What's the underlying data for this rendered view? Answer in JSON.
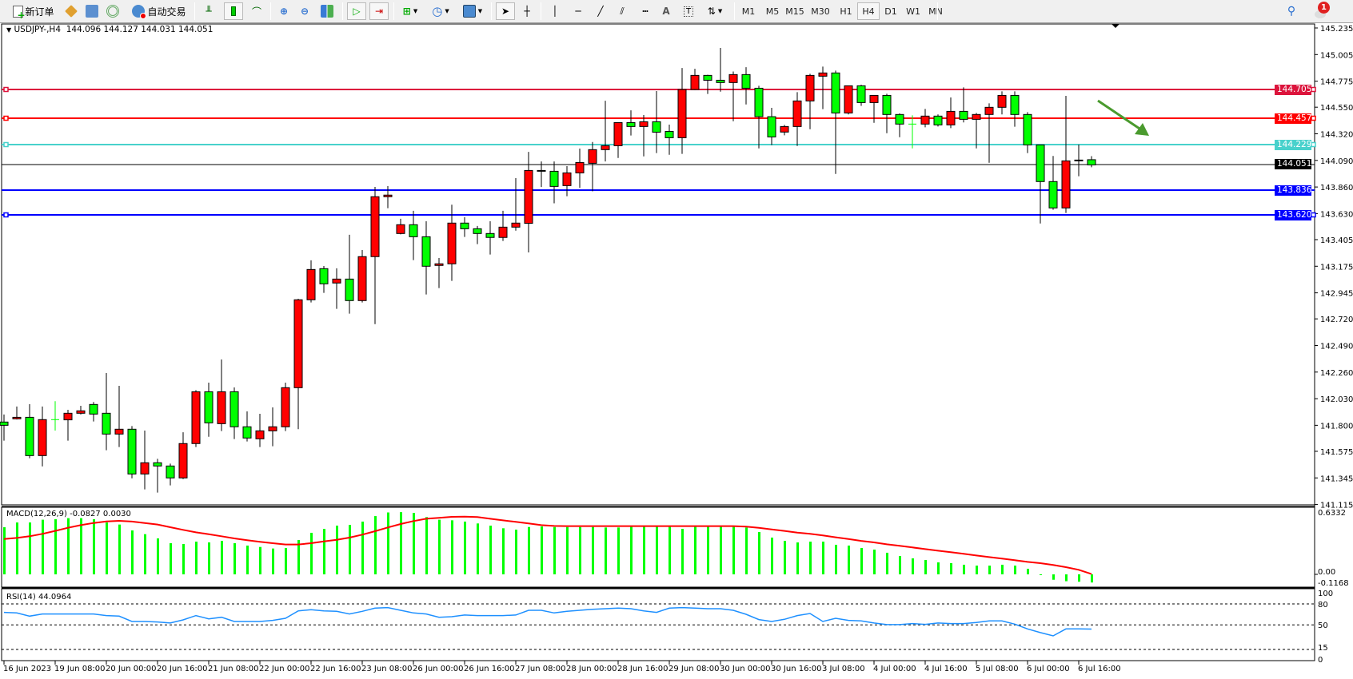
{
  "toolbar": {
    "new_order": "新订单",
    "auto_trading": "自动交易",
    "timeframes": [
      "M1",
      "M5",
      "M15",
      "M30",
      "H1",
      "H4",
      "D1",
      "W1",
      "MN"
    ],
    "active_timeframe": "H4",
    "notification_count": "1",
    "icons": [
      "new-order-icon",
      "history-center-icon",
      "market-watch-icon",
      "signals-icon",
      "auto-trading-icon",
      "bar-chart-icon",
      "candlestick-icon",
      "line-chart-icon",
      "zoom-in-icon",
      "zoom-out-icon",
      "tile-windows-icon",
      "auto-scroll-icon",
      "chart-shift-icon",
      "new-chart-icon",
      "periods-clock-icon",
      "templates-icon",
      "cursor-icon",
      "crosshair-icon",
      "vertical-line-icon",
      "horizontal-line-icon",
      "trendline-icon",
      "equidistant-channel-icon",
      "fibonacci-icon",
      "text-icon",
      "text-label-icon",
      "arrows-icon",
      "search-icon",
      "notification-icon"
    ]
  },
  "chart": {
    "symbol_label": "USDJPY-,H4",
    "ohlc_readout": "144.096 144.127 144.031 144.051",
    "colors": {
      "bull": "#ff0000",
      "bear": "#00ff00",
      "outline": "#000000",
      "macd_hist": "#00ff00",
      "macd_signal": "#ff0000",
      "rsi": "#1e90ff",
      "arrow": "#4a9a2e"
    }
  },
  "chart_data": [
    {
      "type": "candlestick",
      "title": "USDJPY-,H4",
      "ylim": [
        141.115,
        145.235
      ],
      "price_ticks": [
        "145.235",
        "145.005",
        "144.775",
        "144.550",
        "144.320",
        "144.090",
        "143.860",
        "143.630",
        "143.405",
        "143.175",
        "142.945",
        "142.720",
        "142.490",
        "142.260",
        "142.030",
        "141.800",
        "141.575",
        "141.345",
        "141.115"
      ],
      "time_labels": [
        "16 Jun 2023",
        "19 Jun 08:00",
        "20 Jun 00:00",
        "20 Jun 16:00",
        "21 Jun 08:00",
        "22 Jun 00:00",
        "22 Jun 16:00",
        "23 Jun 08:00",
        "26 Jun 00:00",
        "26 Jun 16:00",
        "27 Jun 08:00",
        "28 Jun 00:00",
        "28 Jun 16:00",
        "29 Jun 08:00",
        "30 Jun 00:00",
        "30 Jun 16:00",
        "3 Jul 08:00",
        "4 Jul 00:00",
        "4 Jul 16:00",
        "5 Jul 08:00",
        "6 Jul 00:00",
        "6 Jul 16:00"
      ],
      "candle_fields": [
        "open",
        "high",
        "low",
        "close"
      ],
      "candles": [
        [
          141.828,
          141.893,
          141.667,
          141.8
        ],
        [
          141.856,
          141.962,
          141.85,
          141.869
        ],
        [
          141.869,
          141.982,
          141.515,
          141.538
        ],
        [
          141.538,
          141.962,
          141.444,
          141.849
        ],
        [
          141.849,
          142.008,
          141.754,
          141.849
        ],
        [
          141.847,
          141.934,
          141.667,
          141.904
        ],
        [
          141.904,
          141.968,
          141.893,
          141.925
        ],
        [
          141.98,
          142.001,
          141.833,
          141.897
        ],
        [
          141.904,
          142.252,
          141.584,
          141.724
        ],
        [
          141.724,
          142.141,
          141.612,
          141.766
        ],
        [
          141.766,
          141.793,
          141.342,
          141.379
        ],
        [
          141.379,
          141.754,
          141.246,
          141.476
        ],
        [
          141.476,
          141.51,
          141.218,
          141.448
        ],
        [
          141.448,
          141.469,
          141.28,
          141.345
        ],
        [
          141.345,
          141.74,
          141.335,
          141.642
        ],
        [
          141.642,
          142.104,
          141.612,
          142.09
        ],
        [
          142.09,
          142.169,
          141.701,
          141.821
        ],
        [
          141.814,
          142.369,
          141.75,
          142.09
        ],
        [
          142.09,
          142.127,
          141.681,
          141.787
        ],
        [
          141.787,
          141.92,
          141.66,
          141.69
        ],
        [
          141.683,
          141.899,
          141.612,
          141.752
        ],
        [
          141.752,
          141.955,
          141.619,
          141.787
        ],
        [
          141.787,
          142.169,
          141.75,
          142.125
        ],
        [
          142.125,
          142.894,
          141.766,
          142.885
        ],
        [
          142.885,
          143.226,
          142.862,
          143.147
        ],
        [
          143.154,
          143.177,
          142.945,
          143.023
        ],
        [
          143.03,
          143.157,
          142.807,
          143.064
        ],
        [
          143.064,
          143.447,
          142.765,
          142.878
        ],
        [
          142.878,
          143.315,
          142.862,
          143.258
        ],
        [
          143.258,
          143.861,
          142.675,
          143.776
        ],
        [
          143.776,
          143.868,
          143.677,
          143.79
        ],
        [
          143.458,
          143.585,
          143.451,
          143.534
        ],
        [
          143.534,
          143.654,
          143.228,
          143.43
        ],
        [
          143.43,
          143.564,
          142.931,
          143.175
        ],
        [
          143.182,
          143.246,
          142.986,
          143.196
        ],
        [
          143.196,
          143.707,
          143.048,
          143.548
        ],
        [
          143.548,
          143.599,
          143.428,
          143.499
        ],
        [
          143.499,
          143.523,
          143.366,
          143.458
        ],
        [
          143.458,
          143.564,
          143.276,
          143.424
        ],
        [
          143.424,
          143.654,
          143.394,
          143.513
        ],
        [
          143.513,
          143.937,
          143.483,
          143.548
        ],
        [
          143.546,
          144.164,
          143.294,
          144.003
        ],
        [
          144.0,
          144.081,
          143.86,
          144.003
        ],
        [
          143.996,
          144.081,
          143.719,
          143.865
        ],
        [
          143.872,
          144.04,
          143.78,
          143.982
        ],
        [
          143.982,
          144.192,
          143.853,
          144.072
        ],
        [
          144.065,
          144.249,
          143.823,
          144.183
        ],
        [
          144.183,
          144.606,
          144.081,
          144.217
        ],
        [
          144.217,
          144.42,
          144.111,
          144.417
        ],
        [
          144.417,
          144.523,
          144.305,
          144.383
        ],
        [
          144.383,
          144.482,
          144.125,
          144.424
        ],
        [
          144.424,
          144.689,
          144.153,
          144.334
        ],
        [
          144.341,
          144.399,
          144.139,
          144.286
        ],
        [
          144.286,
          144.889,
          144.146,
          144.703
        ],
        [
          144.703,
          144.882,
          144.698,
          144.825
        ],
        [
          144.825,
          144.83,
          144.664,
          144.783
        ],
        [
          144.783,
          145.062,
          144.684,
          144.763
        ],
        [
          144.763,
          144.859,
          144.429,
          144.832
        ],
        [
          144.832,
          144.896,
          144.574,
          144.714
        ],
        [
          144.714,
          144.735,
          144.194,
          144.468
        ],
        [
          144.468,
          144.544,
          144.222,
          144.293
        ],
        [
          144.335,
          144.397,
          144.307,
          144.383
        ],
        [
          144.383,
          144.68,
          144.215,
          144.604
        ],
        [
          144.604,
          144.839,
          144.36,
          144.825
        ],
        [
          144.818,
          144.901,
          144.533,
          144.846
        ],
        [
          144.846,
          144.866,
          143.973,
          144.5
        ],
        [
          144.5,
          144.735,
          144.487,
          144.735
        ],
        [
          144.735,
          144.744,
          144.562,
          144.59
        ],
        [
          144.59,
          144.652,
          144.415,
          144.652
        ],
        [
          144.652,
          144.666,
          144.325,
          144.487
        ],
        [
          144.487,
          144.496,
          144.291,
          144.404
        ],
        [
          144.404,
          144.48,
          144.194,
          144.404
        ],
        [
          144.404,
          144.535,
          144.376,
          144.473
        ],
        [
          144.473,
          144.487,
          144.383,
          144.397
        ],
        [
          144.397,
          144.634,
          144.369,
          144.514
        ],
        [
          144.514,
          144.721,
          144.418,
          144.445
        ],
        [
          144.445,
          144.5,
          144.194,
          144.487
        ],
        [
          144.487,
          144.583,
          144.07,
          144.549
        ],
        [
          144.549,
          144.687,
          144.487,
          144.652
        ],
        [
          144.652,
          144.687,
          144.381,
          144.487
        ],
        [
          144.487,
          144.507,
          144.153,
          144.224
        ],
        [
          144.224,
          144.224,
          143.545,
          143.907
        ],
        [
          143.907,
          144.128,
          143.663,
          143.679
        ],
        [
          143.679,
          144.648,
          143.635,
          144.086
        ],
        [
          144.089,
          144.227,
          143.953,
          144.093
        ],
        [
          144.096,
          144.127,
          144.031,
          144.051
        ]
      ],
      "horizontal_lines": [
        {
          "price": "144.705",
          "color": "#dc143c"
        },
        {
          "price": "144.457",
          "color": "#ff0000"
        },
        {
          "price": "144.229",
          "color": "#48d1cc"
        },
        {
          "price": "143.836",
          "color": "#0000ff"
        },
        {
          "price": "143.620",
          "color": "#0000ff"
        }
      ],
      "bid_line": {
        "price": "144.051",
        "color": "#000000"
      },
      "annotation": {
        "type": "arrow",
        "direction": "down-right",
        "color": "#4a9a2e"
      }
    },
    {
      "type": "bar+line",
      "title": "MACD(12,26,9) -0.0827 0.0030",
      "label": "MACD(12,26,9)",
      "readout": "-0.0827 0.0030",
      "scale_labels": [
        "0.6332",
        "0.00",
        "-0.1168"
      ],
      "ylim": [
        -0.1168,
        0.6332
      ],
      "histogram": [
        0.48,
        0.528,
        0.528,
        0.556,
        0.561,
        0.572,
        0.572,
        0.561,
        0.528,
        0.507,
        0.447,
        0.409,
        0.366,
        0.317,
        0.309,
        0.333,
        0.325,
        0.341,
        0.317,
        0.293,
        0.279,
        0.263,
        0.268,
        0.35,
        0.423,
        0.463,
        0.496,
        0.504,
        0.537,
        0.593,
        0.63,
        0.633,
        0.626,
        0.583,
        0.556,
        0.55,
        0.537,
        0.518,
        0.496,
        0.469,
        0.455,
        0.482,
        0.488,
        0.482,
        0.482,
        0.482,
        0.482,
        0.477,
        0.477,
        0.496,
        0.496,
        0.485,
        0.485,
        0.463,
        0.485,
        0.485,
        0.485,
        0.485,
        0.477,
        0.431,
        0.374,
        0.341,
        0.325,
        0.333,
        0.333,
        0.301,
        0.293,
        0.268,
        0.252,
        0.22,
        0.187,
        0.163,
        0.146,
        0.122,
        0.114,
        0.098,
        0.089,
        0.089,
        0.098,
        0.089,
        0.057,
        -0.003,
        -0.055,
        -0.07,
        -0.075,
        -0.0827
      ],
      "signal": [
        0.36,
        0.371,
        0.388,
        0.412,
        0.442,
        0.474,
        0.501,
        0.523,
        0.539,
        0.545,
        0.537,
        0.523,
        0.507,
        0.48,
        0.453,
        0.428,
        0.409,
        0.388,
        0.366,
        0.347,
        0.331,
        0.317,
        0.304,
        0.304,
        0.317,
        0.336,
        0.352,
        0.374,
        0.404,
        0.439,
        0.477,
        0.512,
        0.542,
        0.566,
        0.575,
        0.585,
        0.588,
        0.583,
        0.566,
        0.55,
        0.534,
        0.518,
        0.501,
        0.493,
        0.491,
        0.491,
        0.491,
        0.491,
        0.491,
        0.491,
        0.491,
        0.491,
        0.491,
        0.491,
        0.491,
        0.491,
        0.491,
        0.491,
        0.485,
        0.474,
        0.458,
        0.442,
        0.425,
        0.412,
        0.396,
        0.377,
        0.36,
        0.341,
        0.325,
        0.306,
        0.29,
        0.274,
        0.257,
        0.241,
        0.225,
        0.209,
        0.192,
        0.176,
        0.16,
        0.144,
        0.127,
        0.114,
        0.095,
        0.073,
        0.046,
        0.003
      ]
    },
    {
      "type": "line",
      "title": "RSI(14) 44.0964",
      "label": "RSI(14)",
      "readout": "44.0964",
      "scale_labels": [
        "100",
        "80",
        "50",
        "15",
        "0"
      ],
      "levels": [
        80,
        50,
        15
      ],
      "ylim": [
        0,
        100
      ],
      "values": [
        67.9,
        67.1,
        62.5,
        65.6,
        65.6,
        65.6,
        65.6,
        65.6,
        63.3,
        62.5,
        54.9,
        54.9,
        54.2,
        52.7,
        57.2,
        63.3,
        58.7,
        61.0,
        54.9,
        54.9,
        54.9,
        56.5,
        59.5,
        70.1,
        71.7,
        70.1,
        69.4,
        65.6,
        69.4,
        73.9,
        74.7,
        70.9,
        67.1,
        65.6,
        61.0,
        61.8,
        64.1,
        63.3,
        63.3,
        63.3,
        64.1,
        70.9,
        70.9,
        67.1,
        69.4,
        70.9,
        72.4,
        73.2,
        73.9,
        73.2,
        70.1,
        67.9,
        73.9,
        74.7,
        73.9,
        73.2,
        73.2,
        70.9,
        65.2,
        57.6,
        54.9,
        58.0,
        63.3,
        66.3,
        54.9,
        59.5,
        56.5,
        55.7,
        52.7,
        50.4,
        50.4,
        51.9,
        50.8,
        52.7,
        51.9,
        51.9,
        53.4,
        55.7,
        55.7,
        51.1,
        44.3,
        39.0,
        34.4,
        44.3,
        44.3,
        44.1
      ]
    }
  ]
}
